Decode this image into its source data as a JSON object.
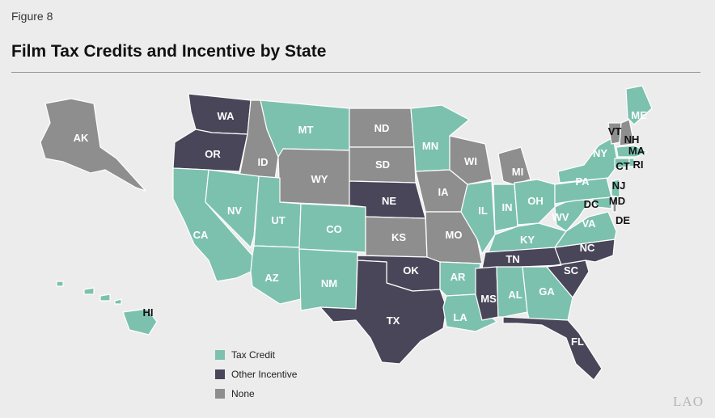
{
  "figure_label": "Figure 8",
  "title": "Film Tax Credits and Incentive by State",
  "colors": {
    "tax_credit": "#7cc1ae",
    "other_incentive": "#4a4659",
    "none": "#8e8e8e",
    "border": "#ffffff"
  },
  "legend": [
    {
      "key": "tax_credit",
      "label": "Tax Credit"
    },
    {
      "key": "other_incentive",
      "label": "Other Incentive"
    },
    {
      "key": "none",
      "label": "None"
    }
  ],
  "states": [
    {
      "abbr": "WA",
      "category": "other_incentive"
    },
    {
      "abbr": "OR",
      "category": "other_incentive"
    },
    {
      "abbr": "CA",
      "category": "tax_credit"
    },
    {
      "abbr": "ID",
      "category": "none"
    },
    {
      "abbr": "NV",
      "category": "tax_credit"
    },
    {
      "abbr": "MT",
      "category": "tax_credit"
    },
    {
      "abbr": "WY",
      "category": "none"
    },
    {
      "abbr": "UT",
      "category": "tax_credit"
    },
    {
      "abbr": "AZ",
      "category": "tax_credit"
    },
    {
      "abbr": "CO",
      "category": "tax_credit"
    },
    {
      "abbr": "NM",
      "category": "tax_credit"
    },
    {
      "abbr": "ND",
      "category": "none"
    },
    {
      "abbr": "SD",
      "category": "none"
    },
    {
      "abbr": "NE",
      "category": "other_incentive"
    },
    {
      "abbr": "KS",
      "category": "none"
    },
    {
      "abbr": "OK",
      "category": "other_incentive"
    },
    {
      "abbr": "TX",
      "category": "other_incentive"
    },
    {
      "abbr": "MN",
      "category": "tax_credit"
    },
    {
      "abbr": "IA",
      "category": "none"
    },
    {
      "abbr": "MO",
      "category": "none"
    },
    {
      "abbr": "AR",
      "category": "tax_credit"
    },
    {
      "abbr": "LA",
      "category": "tax_credit"
    },
    {
      "abbr": "WI",
      "category": "none"
    },
    {
      "abbr": "IL",
      "category": "tax_credit"
    },
    {
      "abbr": "MI",
      "category": "none"
    },
    {
      "abbr": "IN",
      "category": "tax_credit"
    },
    {
      "abbr": "OH",
      "category": "tax_credit"
    },
    {
      "abbr": "KY",
      "category": "tax_credit"
    },
    {
      "abbr": "TN",
      "category": "other_incentive"
    },
    {
      "abbr": "MS",
      "category": "other_incentive"
    },
    {
      "abbr": "AL",
      "category": "tax_credit"
    },
    {
      "abbr": "GA",
      "category": "tax_credit"
    },
    {
      "abbr": "FL",
      "category": "other_incentive"
    },
    {
      "abbr": "SC",
      "category": "other_incentive"
    },
    {
      "abbr": "NC",
      "category": "other_incentive"
    },
    {
      "abbr": "VA",
      "category": "tax_credit"
    },
    {
      "abbr": "WV",
      "category": "tax_credit"
    },
    {
      "abbr": "PA",
      "category": "tax_credit"
    },
    {
      "abbr": "NY",
      "category": "tax_credit"
    },
    {
      "abbr": "ME",
      "category": "tax_credit"
    },
    {
      "abbr": "VT",
      "category": "none"
    },
    {
      "abbr": "NH",
      "category": "none"
    },
    {
      "abbr": "MA",
      "category": "tax_credit"
    },
    {
      "abbr": "CT",
      "category": "tax_credit"
    },
    {
      "abbr": "RI",
      "category": "tax_credit"
    },
    {
      "abbr": "NJ",
      "category": "tax_credit"
    },
    {
      "abbr": "DC",
      "category": "none"
    },
    {
      "abbr": "MD",
      "category": "tax_credit"
    },
    {
      "abbr": "DE",
      "category": "none"
    },
    {
      "abbr": "AK",
      "category": "none"
    },
    {
      "abbr": "HI",
      "category": "tax_credit"
    }
  ],
  "watermark": "LAO"
}
